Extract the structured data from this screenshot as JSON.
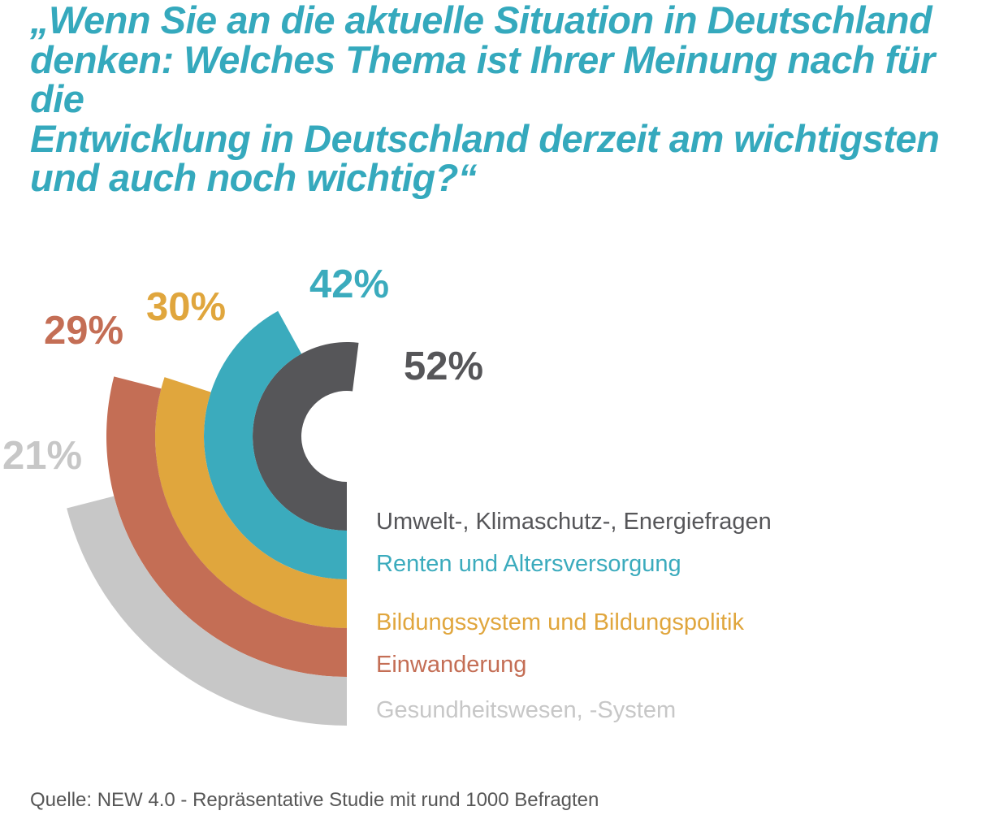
{
  "title": {
    "text": "„Wenn Sie an die aktuelle Situation in Deutschland\ndenken: Welches Thema ist Ihrer Meinung nach für die\nEntwicklung in Deutschland derzeit am wichtigsten\nund auch noch wichtig?“",
    "color": "#35a9bd"
  },
  "source": {
    "text": "Quelle: NEW 4.0 - Repräsentative Studie mit rund 1000 Befragten",
    "color": "#565656"
  },
  "chart_data": {
    "type": "radial-bar",
    "unit": "%",
    "start_position": "bottom",
    "sweep_direction": "clockwise-through-left",
    "full_circle_value": 100,
    "background": "#ffffff",
    "series": [
      {
        "label": "Umwelt-, Klimaschutz-, Energiefragen",
        "value": 52,
        "pct_label": "52%",
        "color": "#565659",
        "ring": "innermost"
      },
      {
        "label": "Renten und Altersversorgung",
        "value": 42,
        "pct_label": "42%",
        "color": "#3babbd",
        "ring": "second"
      },
      {
        "label": "Bildungssystem und Bildungspolitik",
        "value": 30,
        "pct_label": "30%",
        "color": "#e0a63d",
        "ring": "third"
      },
      {
        "label": "Einwanderung",
        "value": 29,
        "pct_label": "29%",
        "color": "#c46e55",
        "ring": "fourth"
      },
      {
        "label": "Gesundheitswesen, -System",
        "value": 21,
        "pct_label": "21%",
        "color": "#c7c7c7",
        "ring": "outermost"
      }
    ]
  }
}
